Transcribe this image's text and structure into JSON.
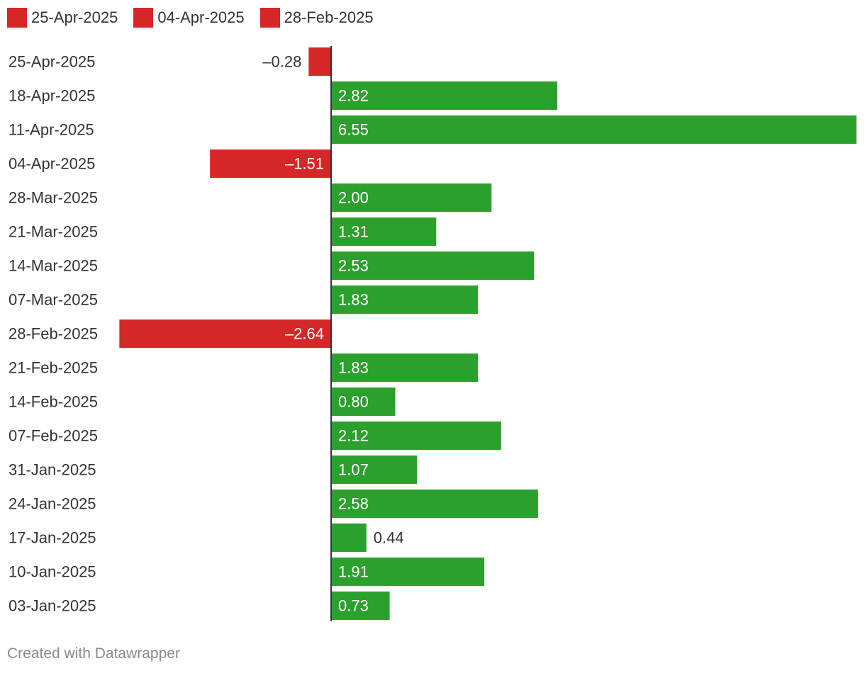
{
  "legend": [
    {
      "label": "25-Apr-2025",
      "color": "#d62728"
    },
    {
      "label": "04-Apr-2025",
      "color": "#d62728"
    },
    {
      "label": "28-Feb-2025",
      "color": "#d62728"
    }
  ],
  "colors": {
    "positive": "#2ca02c",
    "negative": "#d62728",
    "baseline": "#333333",
    "label_on_bar": "#ffffff",
    "label_outside": "#333333"
  },
  "chart_data": {
    "type": "bar",
    "orientation": "horizontal",
    "categories": [
      "25-Apr-2025",
      "18-Apr-2025",
      "11-Apr-2025",
      "04-Apr-2025",
      "28-Mar-2025",
      "21-Mar-2025",
      "14-Mar-2025",
      "07-Mar-2025",
      "28-Feb-2025",
      "21-Feb-2025",
      "14-Feb-2025",
      "07-Feb-2025",
      "31-Jan-2025",
      "24-Jan-2025",
      "17-Jan-2025",
      "10-Jan-2025",
      "03-Jan-2025"
    ],
    "values": [
      -0.28,
      2.82,
      6.55,
      -1.51,
      2.0,
      1.31,
      2.53,
      1.83,
      -2.64,
      1.83,
      0.8,
      2.12,
      1.07,
      2.58,
      0.44,
      1.91,
      0.73
    ],
    "value_labels": [
      "–0.28",
      "2.82",
      "6.55",
      "–1.51",
      "2.00",
      "1.31",
      "2.53",
      "1.83",
      "–2.64",
      "1.83",
      "0.80",
      "2.12",
      "1.07",
      "2.58",
      "0.44",
      "1.91",
      "0.73"
    ],
    "xlim": [
      -2.64,
      6.55
    ],
    "grid": false,
    "legend_position": "top-left"
  },
  "footer": {
    "credit": "Created with Datawrapper"
  }
}
